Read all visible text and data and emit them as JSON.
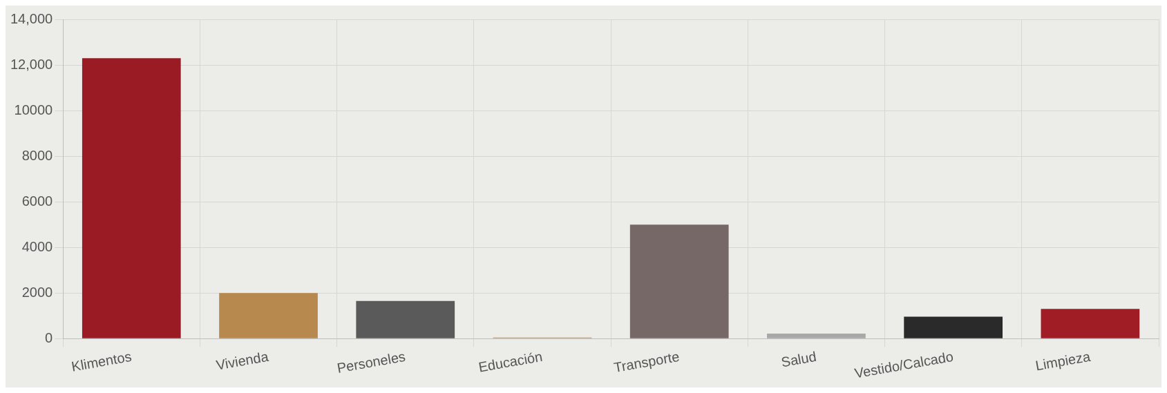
{
  "chart_data": {
    "type": "bar",
    "categories": [
      "Klimentos",
      "Vivienda",
      "Personeles",
      "Educación",
      "Transporte",
      "Salud",
      "Vestido/Calcado",
      "Limpieza"
    ],
    "values": [
      12300,
      2000,
      1650,
      50,
      5000,
      220,
      960,
      1300
    ],
    "colors": [
      "#9b1b24",
      "#b8894e",
      "#5a5a5a",
      "#c8a57a",
      "#756867",
      "#a8a8a8",
      "#2a2a2a",
      "#a11d25"
    ],
    "ylim": [
      0,
      14000
    ],
    "yticks": [
      0,
      2000,
      4000,
      6000,
      8000,
      10000,
      {
        "value": 12000,
        "label": "12,000"
      },
      {
        "value": 14000,
        "label": "14,000"
      }
    ],
    "grid": true,
    "legend": false
  }
}
